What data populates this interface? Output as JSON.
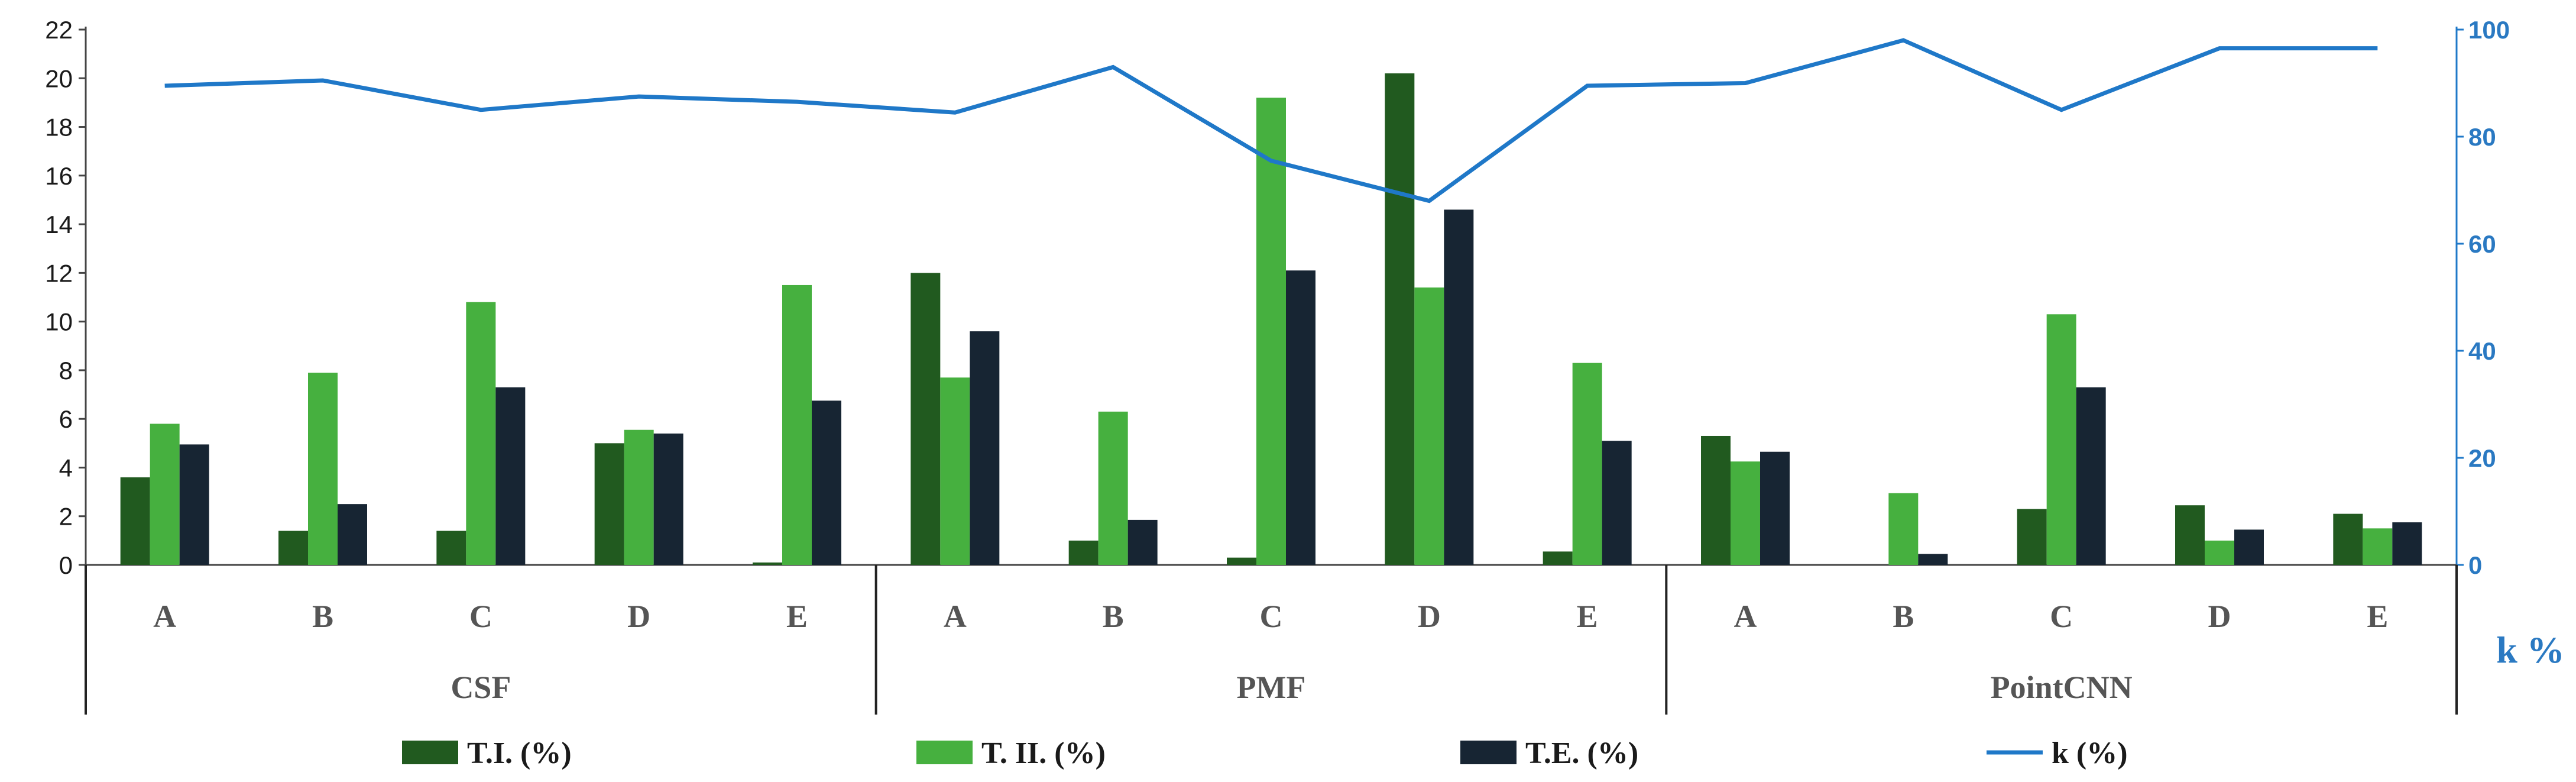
{
  "chart_data": {
    "type": "bar",
    "title": "",
    "groups": [
      {
        "name": "CSF",
        "categories": [
          "A",
          "B",
          "C",
          "D",
          "E"
        ]
      },
      {
        "name": "PMF",
        "categories": [
          "A",
          "B",
          "C",
          "D",
          "E"
        ]
      },
      {
        "name": "PointCNN",
        "categories": [
          "A",
          "B",
          "C",
          "D",
          "E"
        ]
      }
    ],
    "series": [
      {
        "name": "T.I. (%)",
        "color": "#215a1f",
        "axis": "left",
        "values": [
          3.6,
          1.4,
          1.4,
          5.0,
          0.1,
          12.0,
          1.0,
          0.3,
          20.2,
          0.55,
          5.3,
          0.0,
          2.3,
          2.45,
          2.1
        ]
      },
      {
        "name": "T. II. (%)",
        "color": "#46b03f",
        "axis": "left",
        "values": [
          5.8,
          7.9,
          10.8,
          5.55,
          11.5,
          7.7,
          6.3,
          19.2,
          11.4,
          8.3,
          4.25,
          2.95,
          10.3,
          1.0,
          1.5
        ]
      },
      {
        "name": "T.E. (%)",
        "color": "#172533",
        "axis": "left",
        "values": [
          4.95,
          2.5,
          7.3,
          5.4,
          6.75,
          9.6,
          1.85,
          12.1,
          14.6,
          5.1,
          4.65,
          0.45,
          7.3,
          1.45,
          1.75
        ]
      },
      {
        "name": "k (%)",
        "color": "#1f78c8",
        "axis": "right",
        "type": "line",
        "values": [
          89.5,
          90.5,
          85.0,
          87.5,
          86.5,
          84.5,
          93.0,
          75.5,
          68.0,
          89.5,
          90.0,
          98.0,
          85.0,
          96.5,
          96.5
        ]
      }
    ],
    "y_left": {
      "min": 0,
      "max": 22,
      "ticks": [
        "0",
        "2",
        "4",
        "6",
        "8",
        "10",
        "12",
        "14",
        "16",
        "18",
        "20",
        "22"
      ]
    },
    "y_right": {
      "min": 0,
      "max": 100,
      "ticks": [
        "0",
        "20",
        "40",
        "60",
        "80",
        "100"
      ],
      "label": "k %"
    },
    "grid": false,
    "legend_position": "bottom"
  }
}
